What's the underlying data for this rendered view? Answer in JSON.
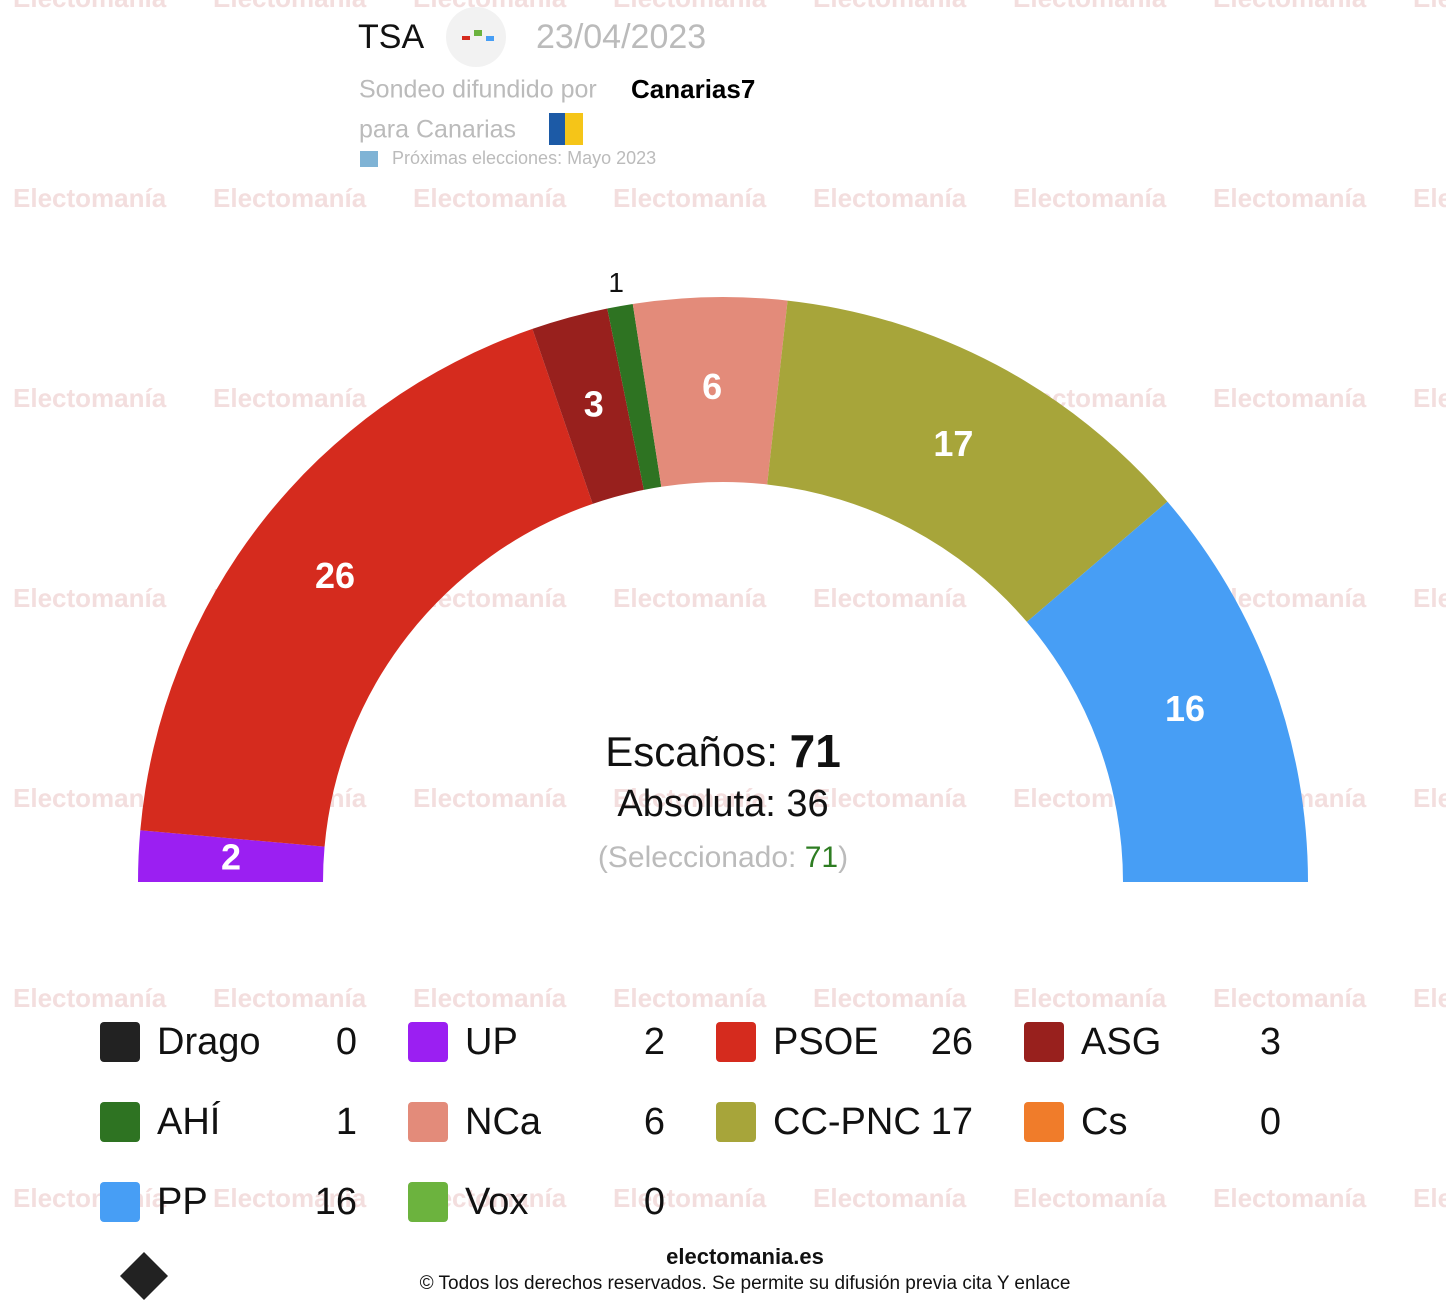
{
  "chart_data": {
    "type": "parliament",
    "pollster": "TSA",
    "date": "23/04/2023",
    "subtitle_prefix": "Sondeo difundido por",
    "publisher": "Canarias7",
    "region_label": "para Canarias",
    "note": "Próximas elecciones: Mayo 2023",
    "seats_label": "Escaños:",
    "total": 71,
    "majority_label": "Absoluta:",
    "majority": 36,
    "selected_label": "(Seleccionado:",
    "selected": 71,
    "selected_suffix": ")",
    "series": [
      {
        "name": "Drago",
        "color": "#222222",
        "value": 0
      },
      {
        "name": "UP",
        "color": "#9b1ff2",
        "value": 2
      },
      {
        "name": "PSOE",
        "color": "#d52b1e",
        "value": 26
      },
      {
        "name": "ASG",
        "color": "#98201d",
        "value": 3
      },
      {
        "name": "AHÍ",
        "color": "#2e7322",
        "value": 1
      },
      {
        "name": "NCa",
        "color": "#e38b7a",
        "value": 6
      },
      {
        "name": "CC-PNC",
        "color": "#a7a53a",
        "value": 17
      },
      {
        "name": "Cs",
        "color": "#f07c2a",
        "value": 0
      },
      {
        "name": "PP",
        "color": "#479ef5",
        "value": 16
      },
      {
        "name": "Vox",
        "color": "#6cb33e",
        "value": 0
      }
    ]
  },
  "footer": {
    "site": "electomania.es",
    "copyright": "© Todos los derechos reservados. Se permite su difusión previa cita Y enlace",
    "watermark": "Electomanía"
  }
}
